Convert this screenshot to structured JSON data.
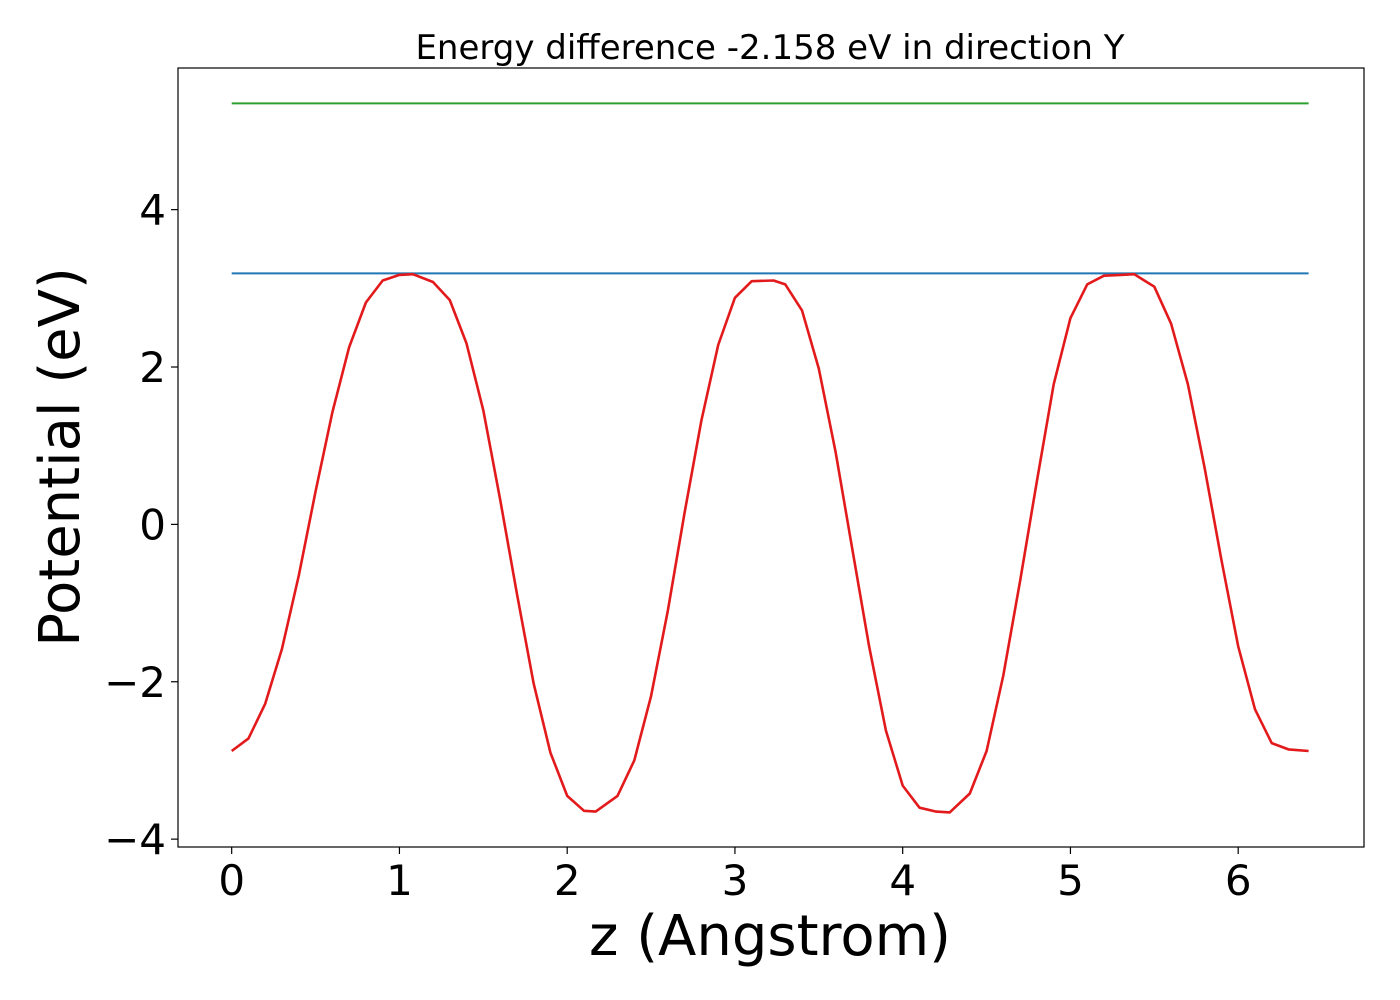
{
  "chart_data": {
    "type": "line",
    "title": "Energy difference -2.158 eV in direction Y",
    "xlabel": "z (Angstrom)",
    "ylabel": "Potential (eV)",
    "xlim": [
      -0.32,
      6.75
    ],
    "ylim": [
      -4.1,
      5.8
    ],
    "xticks": [
      0,
      1,
      2,
      3,
      4,
      5,
      6
    ],
    "xtick_labels": [
      "0",
      "1",
      "2",
      "3",
      "4",
      "5",
      "6"
    ],
    "yticks": [
      -4,
      -2,
      0,
      2,
      4
    ],
    "ytick_labels": [
      "−4",
      "−2",
      "0",
      "2",
      "4"
    ],
    "grid": false,
    "legend": "none",
    "series": [
      {
        "color": "#2ca02c",
        "x": [
          0,
          6.42
        ],
        "y": [
          5.35,
          5.35
        ]
      },
      {
        "color": "#1f77b4",
        "x": [
          0,
          6.42
        ],
        "y": [
          3.19,
          3.19
        ]
      },
      {
        "color": "#e31a1c",
        "x": [
          0,
          0.1,
          0.2,
          0.3,
          0.4,
          0.5,
          0.6,
          0.7,
          0.8,
          0.9,
          1.0,
          1.08,
          1.2,
          1.3,
          1.4,
          1.5,
          1.6,
          1.7,
          1.8,
          1.9,
          2.0,
          2.1,
          2.17,
          2.3,
          2.4,
          2.5,
          2.6,
          2.7,
          2.8,
          2.9,
          3.0,
          3.1,
          3.23,
          3.3,
          3.4,
          3.5,
          3.6,
          3.7,
          3.8,
          3.9,
          4.0,
          4.1,
          4.2,
          4.28,
          4.4,
          4.5,
          4.6,
          4.7,
          4.8,
          4.9,
          5.0,
          5.1,
          5.2,
          5.3,
          5.38,
          5.5,
          5.6,
          5.7,
          5.8,
          5.9,
          6.0,
          6.1,
          6.2,
          6.3,
          6.42
        ],
        "y": [
          -2.88,
          -2.72,
          -2.28,
          -1.58,
          -0.65,
          0.42,
          1.42,
          2.25,
          2.82,
          3.1,
          3.17,
          3.18,
          3.08,
          2.85,
          2.3,
          1.45,
          0.32,
          -0.88,
          -2.02,
          -2.9,
          -3.45,
          -3.64,
          -3.65,
          -3.45,
          -3.0,
          -2.18,
          -1.1,
          0.15,
          1.32,
          2.28,
          2.88,
          3.09,
          3.1,
          3.05,
          2.72,
          1.98,
          0.92,
          -0.32,
          -1.55,
          -2.62,
          -3.32,
          -3.6,
          -3.65,
          -3.66,
          -3.42,
          -2.88,
          -1.92,
          -0.72,
          0.55,
          1.78,
          2.62,
          3.05,
          3.16,
          3.17,
          3.18,
          3.02,
          2.55,
          1.78,
          0.72,
          -0.45,
          -1.55,
          -2.35,
          -2.78,
          -2.86,
          -2.88
        ]
      }
    ]
  }
}
